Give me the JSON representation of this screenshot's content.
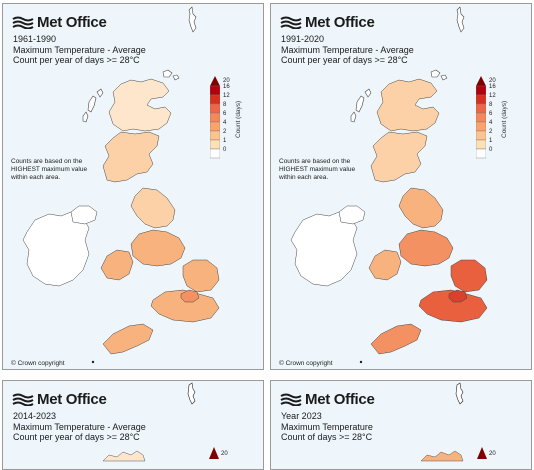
{
  "brand": {
    "logo_text": "Met Office"
  },
  "panels": [
    {
      "line1": "1961-1990",
      "line2": "Maximum Temperature - Average",
      "line3": "Count per year of days >= 28°C",
      "note": [
        "Counts are based on the",
        "HIGHEST maximum value",
        "within each area."
      ],
      "copyright": "© Crown copyright"
    },
    {
      "line1": "1991-2020",
      "line2": "Maximum Temperature - Average",
      "line3": "Count per year of days >= 28°C",
      "note": [
        "Counts are based on the",
        "HIGHEST maximum value",
        "within each area."
      ],
      "copyright": "© Crown copyright"
    },
    {
      "line1": "2014-2023",
      "line2": "Maximum Temperature - Average",
      "line3": "Count per year of days >= 28°C"
    },
    {
      "line1": "Year 2023",
      "line2": "Maximum Temperature",
      "line3": "Count of days >= 28°C"
    }
  ],
  "legend": {
    "title": "Count (days)",
    "ticks": [
      "20",
      "16",
      "12",
      "8",
      "6",
      "4",
      "2",
      "1",
      "0"
    ],
    "colors": [
      "#7f0000",
      "#b3000c",
      "#d7301f",
      "#ef6548",
      "#f6875a",
      "#fba36b",
      "#fdc38f",
      "#fee0b6",
      "#ffffff"
    ]
  },
  "region_colors": {
    "pale": "#fde6cb",
    "light": "#fcd1a7",
    "mid": "#f8b27e",
    "warm": "#f39163",
    "hot": "#e8603e",
    "hotter": "#d9412c"
  }
}
